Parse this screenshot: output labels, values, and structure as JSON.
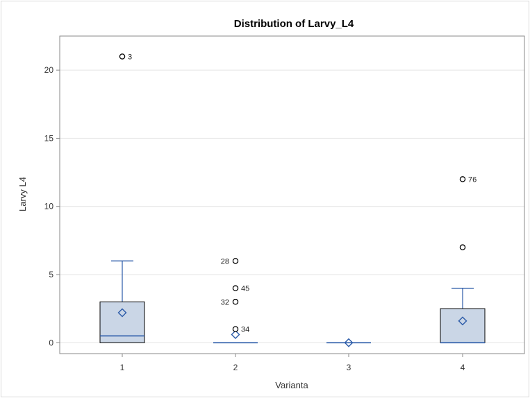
{
  "chart_data": {
    "type": "box",
    "title": "Distribution of Larvy_L4",
    "xlabel": "Varianta",
    "ylabel": "Larvy L4",
    "categories": [
      "1",
      "2",
      "3",
      "4"
    ],
    "ylim": [
      -0.8,
      22.5
    ],
    "yticks": [
      0,
      5,
      10,
      15,
      20
    ],
    "grid": true,
    "boxes": [
      {
        "category": "1",
        "q1": 0,
        "median": 0.5,
        "q3": 3,
        "whisker_low": 0,
        "whisker_high": 6,
        "mean": 2.2,
        "outliers": [
          {
            "value": 21,
            "label": "3"
          }
        ]
      },
      {
        "category": "2",
        "q1": 0,
        "median": 0,
        "q3": 0,
        "whisker_low": 0,
        "whisker_high": 0,
        "mean": 0.6,
        "outliers": [
          {
            "value": 6,
            "label": "28"
          },
          {
            "value": 4,
            "label": "45"
          },
          {
            "value": 3,
            "label": "32"
          },
          {
            "value": 1,
            "label": "34"
          }
        ]
      },
      {
        "category": "3",
        "q1": 0,
        "median": 0,
        "q3": 0,
        "whisker_low": 0,
        "whisker_high": 0,
        "mean": 0,
        "outliers": []
      },
      {
        "category": "4",
        "q1": 0,
        "median": 0,
        "q3": 2.5,
        "whisker_low": 0,
        "whisker_high": 4,
        "mean": 1.6,
        "outliers": [
          {
            "value": 12,
            "label": "76"
          },
          {
            "value": 7,
            "label": ""
          }
        ]
      }
    ],
    "colors": {
      "box_fill": "#cad6e6",
      "box_stroke": "#000000",
      "whisker": "#2a5aa8",
      "median": "#2a5aa8",
      "mean": "#2a5aa8",
      "outlier": "#000000",
      "grid": "#e4e4e4",
      "frame": "#888888"
    }
  }
}
